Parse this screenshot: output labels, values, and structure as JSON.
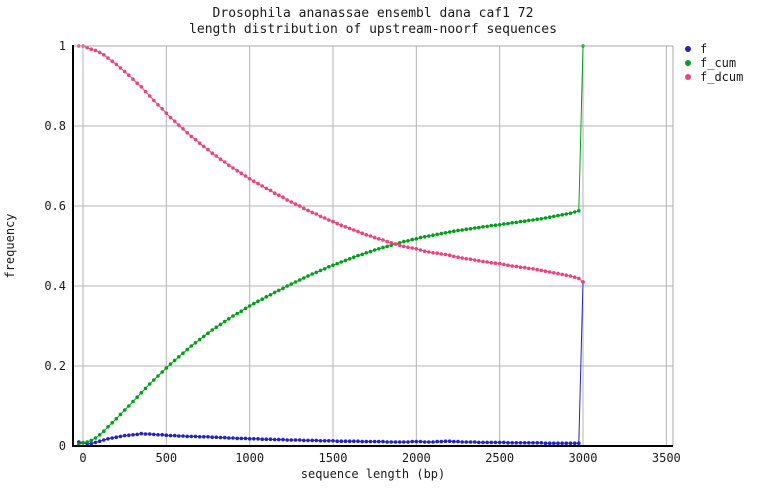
{
  "page": {
    "background": "#ffffff",
    "text_color": "#1a1a1a"
  },
  "chart_data": {
    "type": "line",
    "title_line1": "Drosophila ananassae ensembl dana caf1 72",
    "title_line2": "length distribution of upstream-noorf sequences",
    "xlabel": "sequence length (bp)",
    "ylabel": "frequency",
    "xlim": [
      -60,
      3540
    ],
    "ylim": [
      0,
      1
    ],
    "xticks": [
      0,
      500,
      1000,
      1500,
      2000,
      2500,
      3000,
      3500
    ],
    "xtick_labels": [
      "0",
      "500",
      "1000",
      "1500",
      "2000",
      "2500",
      "3000",
      "3500"
    ],
    "yticks": [
      0,
      0.2,
      0.4,
      0.6,
      0.8,
      1
    ],
    "ytick_labels": [
      "0",
      "0.2",
      "0.4",
      "0.6",
      "0.8",
      "1"
    ],
    "grid": true,
    "grid_color": "#b4b4b4",
    "axis_color": "#000000",
    "border_color": "#aaaaaa",
    "legend_position": "outside-top-right",
    "x_start": -25,
    "x_step": 25,
    "series": [
      {
        "name": "f",
        "color": "#2222cc",
        "values": [
          0.01,
          0.008,
          0.006,
          0.006,
          0.009,
          0.012,
          0.015,
          0.018,
          0.02,
          0.022,
          0.024,
          0.026,
          0.027,
          0.028,
          0.029,
          0.031,
          0.03,
          0.03,
          0.029,
          0.028,
          0.028,
          0.027,
          0.026,
          0.026,
          0.025,
          0.025,
          0.024,
          0.024,
          0.024,
          0.023,
          0.023,
          0.023,
          0.022,
          0.022,
          0.021,
          0.021,
          0.02,
          0.02,
          0.019,
          0.019,
          0.019,
          0.018,
          0.018,
          0.018,
          0.017,
          0.017,
          0.017,
          0.016,
          0.016,
          0.016,
          0.015,
          0.015,
          0.015,
          0.015,
          0.014,
          0.014,
          0.014,
          0.014,
          0.013,
          0.013,
          0.013,
          0.013,
          0.012,
          0.012,
          0.012,
          0.012,
          0.012,
          0.012,
          0.011,
          0.011,
          0.011,
          0.011,
          0.011,
          0.011,
          0.01,
          0.01,
          0.01,
          0.01,
          0.01,
          0.01,
          0.011,
          0.011,
          0.011,
          0.01,
          0.01,
          0.01,
          0.011,
          0.011,
          0.012,
          0.012,
          0.011,
          0.011,
          0.01,
          0.01,
          0.01,
          0.01,
          0.009,
          0.009,
          0.009,
          0.009,
          0.009,
          0.009,
          0.009,
          0.008,
          0.008,
          0.008,
          0.008,
          0.008,
          0.008,
          0.008,
          0.008,
          0.008,
          0.007,
          0.007,
          0.007,
          0.007,
          0.007,
          0.007,
          0.007,
          0.007,
          0.007,
          0.41
        ]
      },
      {
        "name": "f_cum",
        "color": "#00a018",
        "values": [
          0.005,
          0.008,
          0.01,
          0.014,
          0.02,
          0.028,
          0.037,
          0.048,
          0.058,
          0.068,
          0.079,
          0.09,
          0.1,
          0.111,
          0.122,
          0.133,
          0.144,
          0.155,
          0.165,
          0.175,
          0.185,
          0.195,
          0.205,
          0.214,
          0.223,
          0.232,
          0.241,
          0.25,
          0.258,
          0.266,
          0.274,
          0.282,
          0.29,
          0.297,
          0.304,
          0.311,
          0.318,
          0.325,
          0.331,
          0.337,
          0.344,
          0.35,
          0.356,
          0.362,
          0.367,
          0.373,
          0.378,
          0.384,
          0.389,
          0.394,
          0.4,
          0.405,
          0.41,
          0.415,
          0.42,
          0.425,
          0.43,
          0.434,
          0.439,
          0.443,
          0.448,
          0.452,
          0.456,
          0.46,
          0.464,
          0.468,
          0.472,
          0.476,
          0.479,
          0.483,
          0.486,
          0.49,
          0.493,
          0.496,
          0.499,
          0.502,
          0.505,
          0.508,
          0.511,
          0.513,
          0.516,
          0.518,
          0.521,
          0.523,
          0.525,
          0.527,
          0.529,
          0.531,
          0.533,
          0.535,
          0.537,
          0.539,
          0.54,
          0.542,
          0.543,
          0.545,
          0.546,
          0.548,
          0.549,
          0.551,
          0.552,
          0.553,
          0.555,
          0.556,
          0.558,
          0.559,
          0.561,
          0.562,
          0.564,
          0.565,
          0.567,
          0.568,
          0.57,
          0.572,
          0.574,
          0.576,
          0.578,
          0.58,
          0.582,
          0.585,
          0.588,
          1.0
        ]
      },
      {
        "name": "f_dcum",
        "color": "#f0417c",
        "values": [
          1.0,
          1.0,
          0.996,
          0.992,
          0.989,
          0.984,
          0.978,
          0.97,
          0.962,
          0.954,
          0.945,
          0.936,
          0.927,
          0.917,
          0.907,
          0.898,
          0.886,
          0.875,
          0.864,
          0.853,
          0.843,
          0.832,
          0.821,
          0.812,
          0.802,
          0.793,
          0.783,
          0.774,
          0.766,
          0.757,
          0.749,
          0.741,
          0.732,
          0.725,
          0.717,
          0.71,
          0.702,
          0.695,
          0.688,
          0.682,
          0.675,
          0.668,
          0.662,
          0.656,
          0.65,
          0.644,
          0.639,
          0.632,
          0.627,
          0.622,
          0.615,
          0.61,
          0.605,
          0.6,
          0.594,
          0.589,
          0.584,
          0.58,
          0.574,
          0.57,
          0.565,
          0.561,
          0.556,
          0.552,
          0.548,
          0.544,
          0.54,
          0.536,
          0.532,
          0.528,
          0.525,
          0.521,
          0.518,
          0.515,
          0.511,
          0.508,
          0.505,
          0.502,
          0.499,
          0.497,
          0.495,
          0.493,
          0.49,
          0.487,
          0.485,
          0.483,
          0.482,
          0.48,
          0.479,
          0.477,
          0.474,
          0.472,
          0.47,
          0.468,
          0.467,
          0.465,
          0.463,
          0.461,
          0.46,
          0.458,
          0.457,
          0.456,
          0.454,
          0.452,
          0.45,
          0.449,
          0.447,
          0.446,
          0.444,
          0.443,
          0.441,
          0.439,
          0.437,
          0.435,
          0.433,
          0.431,
          0.429,
          0.427,
          0.425,
          0.422,
          0.419,
          0.41
        ]
      }
    ]
  }
}
